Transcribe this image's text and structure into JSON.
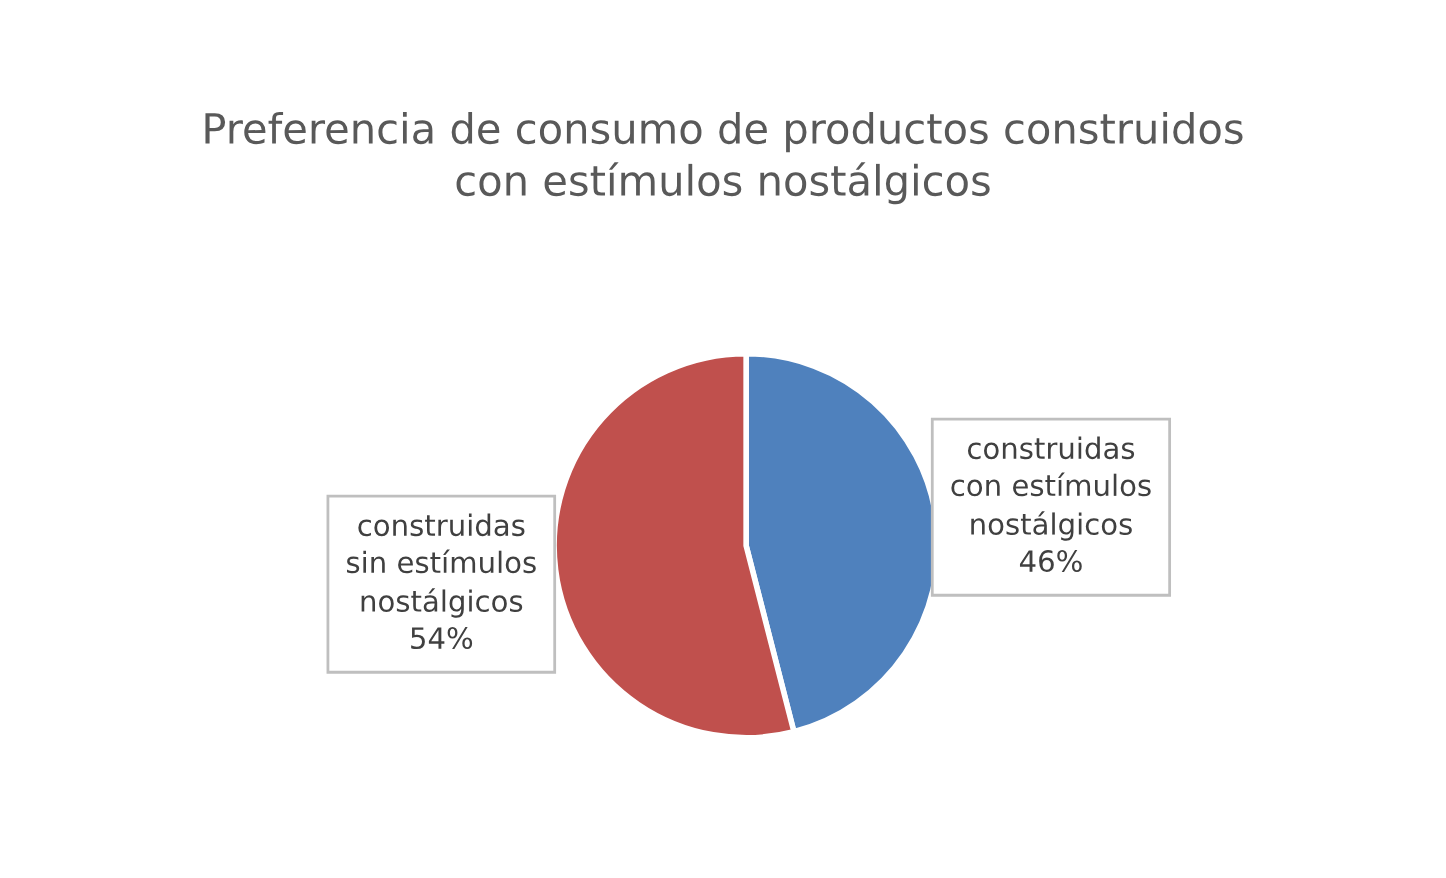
{
  "chart_data": {
    "type": "pie",
    "title": "Preferencia de consumo de productos construidos\ncon estímulos nostálgicos",
    "categories": [
      "construidas\ncon estímulos\nnostálgicos",
      "construidas\nsin estímulos\nnostálgicos"
    ],
    "values": [
      46,
      54
    ],
    "colors": [
      "#4f81bd",
      "#c0504d"
    ],
    "value_labels": [
      "46%",
      "54%"
    ]
  }
}
